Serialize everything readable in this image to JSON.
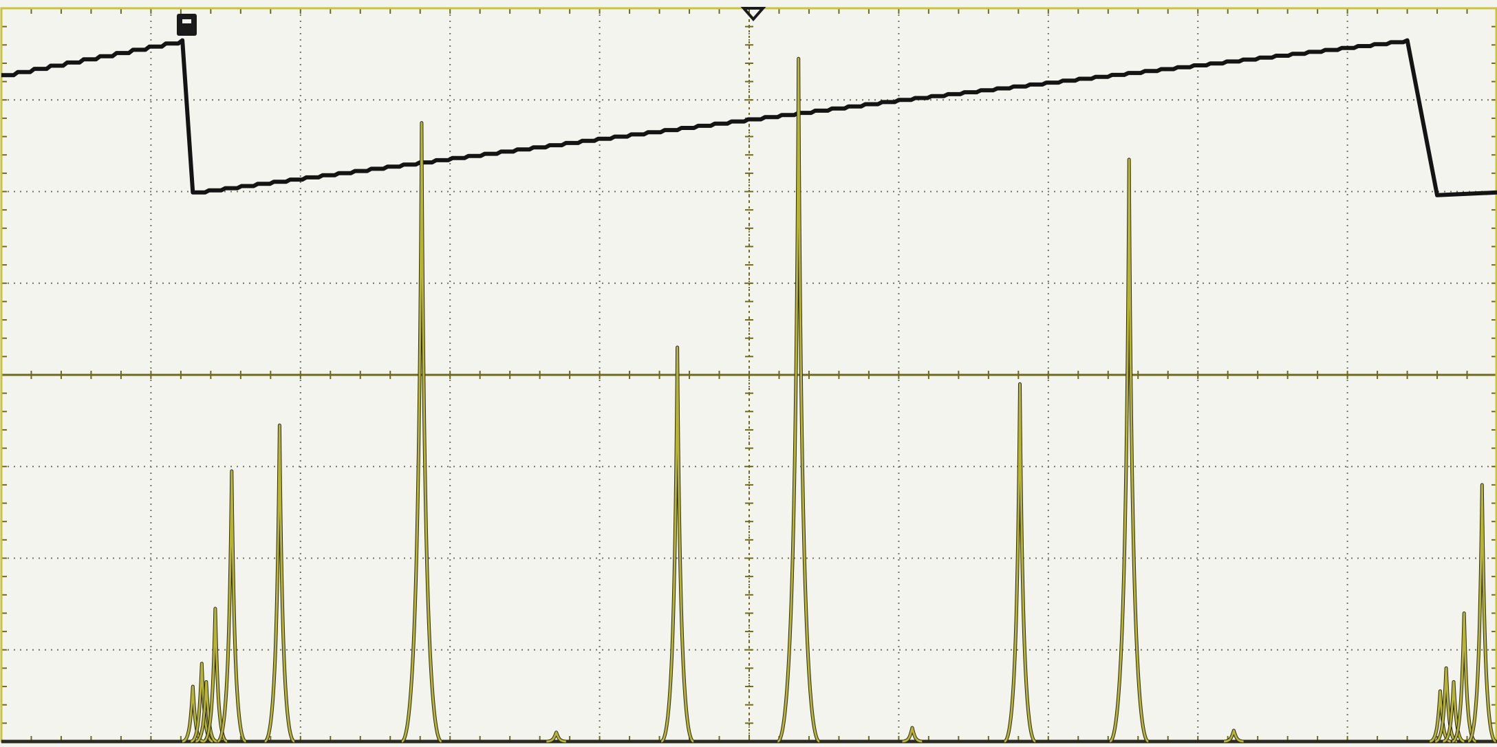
{
  "chart_data": {
    "type": "line",
    "title": "",
    "xlabel": "",
    "ylabel": "",
    "grid": true,
    "xlim": [
      0,
      10
    ],
    "ylim": [
      0,
      8
    ],
    "colors": {
      "background": "#f4f4ef",
      "grid": "#6f6f66",
      "frame": "#c9c43a",
      "axis_ticks": "#6e6a1c",
      "ramp": "#141414",
      "peaks": "#b8b331",
      "peaks_outline": "#2a2a20"
    },
    "series": [
      {
        "id": "ramp",
        "style": "staircase",
        "points": [
          [
            0.0,
            7.27
          ],
          [
            1.21,
            7.65
          ],
          [
            1.28,
            5.99
          ],
          [
            4.1,
            6.6
          ],
          [
            6.0,
            7.0
          ],
          [
            9.4,
            7.65
          ],
          [
            9.6,
            5.96
          ],
          [
            10.0,
            5.99
          ]
        ]
      },
      {
        "id": "peaks",
        "style": "impulse",
        "baseline": 0.0,
        "peaks": [
          {
            "x": 1.28,
            "y": 0.6
          },
          {
            "x": 1.34,
            "y": 0.85
          },
          {
            "x": 1.37,
            "y": 0.65
          },
          {
            "x": 1.43,
            "y": 1.45
          },
          {
            "x": 1.54,
            "y": 2.95
          },
          {
            "x": 1.86,
            "y": 3.45
          },
          {
            "x": 2.81,
            "y": 6.75
          },
          {
            "x": 3.71,
            "y": 0.1
          },
          {
            "x": 4.52,
            "y": 4.3
          },
          {
            "x": 5.33,
            "y": 7.45
          },
          {
            "x": 6.09,
            "y": 0.15
          },
          {
            "x": 6.81,
            "y": 3.9
          },
          {
            "x": 7.54,
            "y": 6.35
          },
          {
            "x": 8.24,
            "y": 0.12
          },
          {
            "x": 9.62,
            "y": 0.55
          },
          {
            "x": 9.66,
            "y": 0.8
          },
          {
            "x": 9.71,
            "y": 0.65
          },
          {
            "x": 9.78,
            "y": 1.4
          },
          {
            "x": 9.9,
            "y": 2.8
          }
        ]
      }
    ]
  }
}
